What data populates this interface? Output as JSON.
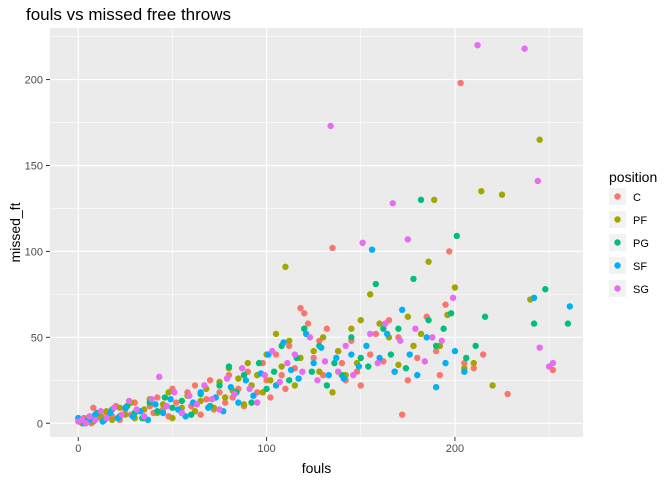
{
  "chart_data": {
    "type": "scatter",
    "title": "fouls vs missed free throws",
    "xlabel": "fouls",
    "ylabel": "missed_ft",
    "xlim": [
      -15,
      268
    ],
    "ylim": [
      -8,
      230
    ],
    "xticks": [
      0,
      100,
      200
    ],
    "yticks": [
      0,
      50,
      100,
      150,
      200
    ],
    "grid": true,
    "legend_placement": "right",
    "legend_title": "position",
    "series": [
      {
        "name": "C",
        "color": "#F8766D",
        "points": [
          [
            1,
            1
          ],
          [
            3,
            3
          ],
          [
            5,
            2
          ],
          [
            7,
            0
          ],
          [
            8,
            9
          ],
          [
            10,
            5
          ],
          [
            12,
            3
          ],
          [
            15,
            6
          ],
          [
            18,
            4
          ],
          [
            20,
            10
          ],
          [
            22,
            2
          ],
          [
            25,
            8
          ],
          [
            28,
            5
          ],
          [
            30,
            12
          ],
          [
            33,
            7
          ],
          [
            35,
            3
          ],
          [
            38,
            10
          ],
          [
            40,
            6
          ],
          [
            42,
            15
          ],
          [
            45,
            8
          ],
          [
            48,
            4
          ],
          [
            50,
            20
          ],
          [
            52,
            12
          ],
          [
            55,
            6
          ],
          [
            58,
            18
          ],
          [
            60,
            10
          ],
          [
            62,
            22
          ],
          [
            65,
            5
          ],
          [
            68,
            14
          ],
          [
            70,
            25
          ],
          [
            72,
            8
          ],
          [
            75,
            18
          ],
          [
            78,
            12
          ],
          [
            80,
            28
          ],
          [
            82,
            15
          ],
          [
            85,
            20
          ],
          [
            88,
            10
          ],
          [
            90,
            30
          ],
          [
            92,
            22
          ],
          [
            95,
            18
          ],
          [
            98,
            35
          ],
          [
            100,
            25
          ],
          [
            102,
            15
          ],
          [
            105,
            40
          ],
          [
            108,
            28
          ],
          [
            110,
            20
          ],
          [
            112,
            45
          ],
          [
            115,
            32
          ],
          [
            118,
            67
          ],
          [
            120,
            64
          ],
          [
            122,
            58
          ],
          [
            125,
            38
          ],
          [
            128,
            48
          ],
          [
            130,
            28
          ],
          [
            132,
            55
          ],
          [
            135,
            102
          ],
          [
            138,
            42
          ],
          [
            140,
            35
          ],
          [
            142,
            25
          ],
          [
            145,
            48
          ],
          [
            148,
            30
          ],
          [
            150,
            22
          ],
          [
            155,
            40
          ],
          [
            158,
            52
          ],
          [
            162,
            36
          ],
          [
            165,
            60
          ],
          [
            168,
            30
          ],
          [
            170,
            50
          ],
          [
            172,
            5
          ],
          [
            175,
            25
          ],
          [
            178,
            45
          ],
          [
            180,
            38
          ],
          [
            185,
            62
          ],
          [
            190,
            42
          ],
          [
            192,
            28
          ],
          [
            195,
            69
          ],
          [
            197,
            100
          ],
          [
            203,
            198
          ],
          [
            205,
            35
          ],
          [
            210,
            32
          ],
          [
            215,
            40
          ],
          [
            228,
            17
          ],
          [
            252,
            31
          ]
        ]
      },
      {
        "name": "PF",
        "color": "#A3A500",
        "points": [
          [
            2,
            0
          ],
          [
            5,
            3
          ],
          [
            8,
            1
          ],
          [
            12,
            4
          ],
          [
            15,
            7
          ],
          [
            18,
            2
          ],
          [
            22,
            9
          ],
          [
            25,
            5
          ],
          [
            28,
            12
          ],
          [
            30,
            3
          ],
          [
            35,
            8
          ],
          [
            38,
            14
          ],
          [
            42,
            6
          ],
          [
            45,
            11
          ],
          [
            48,
            18
          ],
          [
            50,
            3
          ],
          [
            55,
            9
          ],
          [
            58,
            16
          ],
          [
            62,
            7
          ],
          [
            65,
            13
          ],
          [
            68,
            20
          ],
          [
            72,
            9
          ],
          [
            75,
            24
          ],
          [
            78,
            15
          ],
          [
            80,
            32
          ],
          [
            82,
            19
          ],
          [
            85,
            26
          ],
          [
            88,
            11
          ],
          [
            90,
            35
          ],
          [
            92,
            22
          ],
          [
            95,
            28
          ],
          [
            98,
            18
          ],
          [
            100,
            40
          ],
          [
            102,
            25
          ],
          [
            105,
            52
          ],
          [
            108,
            33
          ],
          [
            110,
            91
          ],
          [
            112,
            48
          ],
          [
            115,
            22
          ],
          [
            118,
            38
          ],
          [
            120,
            55
          ],
          [
            125,
            42
          ],
          [
            128,
            30
          ],
          [
            130,
            50
          ],
          [
            135,
            18
          ],
          [
            138,
            42
          ],
          [
            142,
            28
          ],
          [
            145,
            55
          ],
          [
            148,
            35
          ],
          [
            150,
            60
          ],
          [
            155,
            75
          ],
          [
            160,
            58
          ],
          [
            165,
            50
          ],
          [
            170,
            34
          ],
          [
            175,
            62
          ],
          [
            178,
            45
          ],
          [
            182,
            52
          ],
          [
            186,
            94
          ],
          [
            189,
            130
          ],
          [
            192,
            45
          ],
          [
            196,
            63
          ],
          [
            200,
            79
          ],
          [
            205,
            32
          ],
          [
            210,
            35
          ],
          [
            214,
            135
          ],
          [
            220,
            22
          ],
          [
            225,
            133
          ],
          [
            240,
            72
          ],
          [
            245,
            165
          ]
        ]
      },
      {
        "name": "PG",
        "color": "#00BF7D",
        "points": [
          [
            1,
            2
          ],
          [
            4,
            1
          ],
          [
            7,
            3
          ],
          [
            10,
            6
          ],
          [
            14,
            2
          ],
          [
            18,
            8
          ],
          [
            22,
            4
          ],
          [
            26,
            10
          ],
          [
            30,
            6
          ],
          [
            34,
            3
          ],
          [
            38,
            12
          ],
          [
            42,
            7
          ],
          [
            46,
            15
          ],
          [
            50,
            9
          ],
          [
            55,
            13
          ],
          [
            60,
            5
          ],
          [
            65,
            17
          ],
          [
            70,
            10
          ],
          [
            75,
            22
          ],
          [
            80,
            33
          ],
          [
            84,
            18
          ],
          [
            88,
            28
          ],
          [
            92,
            12
          ],
          [
            96,
            35
          ],
          [
            100,
            20
          ],
          [
            104,
            30
          ],
          [
            108,
            45
          ],
          [
            112,
            25
          ],
          [
            116,
            38
          ],
          [
            120,
            55
          ],
          [
            124,
            30
          ],
          [
            128,
            45
          ],
          [
            132,
            22
          ],
          [
            136,
            35
          ],
          [
            140,
            28
          ],
          [
            145,
            50
          ],
          [
            150,
            38
          ],
          [
            154,
            33
          ],
          [
            158,
            81
          ],
          [
            162,
            55
          ],
          [
            166,
            40
          ],
          [
            170,
            55
          ],
          [
            174,
            32
          ],
          [
            178,
            84
          ],
          [
            182,
            130
          ],
          [
            186,
            60
          ],
          [
            190,
            45
          ],
          [
            194,
            55
          ],
          [
            198,
            64
          ],
          [
            201,
            109
          ],
          [
            206,
            38
          ],
          [
            211,
            45
          ],
          [
            216,
            62
          ],
          [
            242,
            58
          ],
          [
            248,
            78
          ],
          [
            260,
            58
          ]
        ]
      },
      {
        "name": "SF",
        "color": "#00B0F6",
        "points": [
          [
            0,
            3
          ],
          [
            3,
            0
          ],
          [
            6,
            2
          ],
          [
            9,
            5
          ],
          [
            13,
            1
          ],
          [
            17,
            6
          ],
          [
            21,
            3
          ],
          [
            25,
            9
          ],
          [
            29,
            4
          ],
          [
            33,
            7
          ],
          [
            37,
            2
          ],
          [
            41,
            11
          ],
          [
            45,
            6
          ],
          [
            49,
            14
          ],
          [
            53,
            8
          ],
          [
            57,
            4
          ],
          [
            61,
            12
          ],
          [
            65,
            18
          ],
          [
            69,
            9
          ],
          [
            73,
            15
          ],
          [
            77,
            7
          ],
          [
            81,
            21
          ],
          [
            85,
            12
          ],
          [
            89,
            25
          ],
          [
            93,
            16
          ],
          [
            97,
            29
          ],
          [
            101,
            40
          ],
          [
            105,
            22
          ],
          [
            109,
            47
          ],
          [
            113,
            31
          ],
          [
            117,
            26
          ],
          [
            121,
            52
          ],
          [
            125,
            35
          ],
          [
            129,
            44
          ],
          [
            133,
            28
          ],
          [
            137,
            38
          ],
          [
            141,
            26
          ],
          [
            145,
            40
          ],
          [
            149,
            33
          ],
          [
            153,
            45
          ],
          [
            156,
            101
          ],
          [
            160,
            38
          ],
          [
            164,
            52
          ],
          [
            168,
            30
          ],
          [
            172,
            66
          ],
          [
            176,
            40
          ],
          [
            180,
            28
          ],
          [
            185,
            50
          ],
          [
            190,
            21
          ],
          [
            195,
            35
          ],
          [
            200,
            42
          ],
          [
            205,
            30
          ],
          [
            242,
            73
          ],
          [
            261,
            68
          ]
        ]
      },
      {
        "name": "SG",
        "color": "#E76BF3",
        "points": [
          [
            0,
            1
          ],
          [
            2,
            2
          ],
          [
            4,
            0
          ],
          [
            6,
            4
          ],
          [
            9,
            2
          ],
          [
            12,
            7
          ],
          [
            15,
            3
          ],
          [
            19,
            9
          ],
          [
            23,
            5
          ],
          [
            27,
            13
          ],
          [
            31,
            8
          ],
          [
            35,
            4
          ],
          [
            39,
            14
          ],
          [
            43,
            27
          ],
          [
            47,
            10
          ],
          [
            51,
            18
          ],
          [
            55,
            6
          ],
          [
            59,
            16
          ],
          [
            63,
            11
          ],
          [
            67,
            22
          ],
          [
            71,
            14
          ],
          [
            75,
            8
          ],
          [
            79,
            26
          ],
          [
            83,
            17
          ],
          [
            87,
            32
          ],
          [
            91,
            20
          ],
          [
            95,
            12
          ],
          [
            99,
            28
          ],
          [
            103,
            42
          ],
          [
            107,
            24
          ],
          [
            111,
            35
          ],
          [
            115,
            40
          ],
          [
            119,
            30
          ],
          [
            123,
            50
          ],
          [
            127,
            25
          ],
          [
            131,
            36
          ],
          [
            134,
            173
          ],
          [
            138,
            30
          ],
          [
            142,
            45
          ],
          [
            146,
            28
          ],
          [
            151,
            105
          ],
          [
            155,
            52
          ],
          [
            159,
            35
          ],
          [
            163,
            58
          ],
          [
            167,
            128
          ],
          [
            171,
            48
          ],
          [
            175,
            107
          ],
          [
            179,
            55
          ],
          [
            184,
            36
          ],
          [
            188,
            50
          ],
          [
            193,
            48
          ],
          [
            199,
            73
          ],
          [
            212,
            220
          ],
          [
            237,
            218
          ],
          [
            244,
            141
          ],
          [
            250,
            33
          ],
          [
            252,
            35
          ],
          [
            245,
            44
          ]
        ]
      }
    ]
  }
}
